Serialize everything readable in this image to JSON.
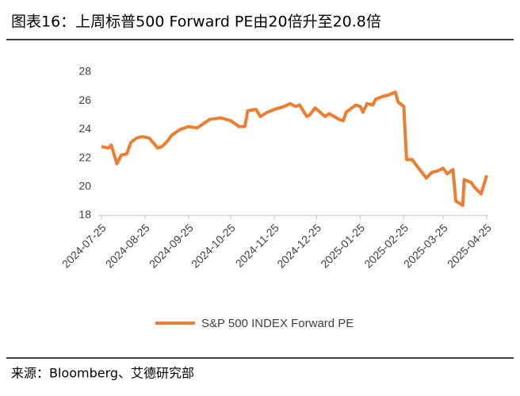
{
  "chart_data": {
    "type": "line",
    "title": "图表16：上周标普500 Forward PE由20倍升至20.8倍",
    "source": "来源：Bloomberg、艾德研究部",
    "x": [
      "2024-07-25",
      "2024-07-30",
      "2024-08-01",
      "2024-08-05",
      "2024-08-08",
      "2024-08-12",
      "2024-08-15",
      "2024-08-19",
      "2024-08-23",
      "2024-08-28",
      "2024-09-03",
      "2024-09-06",
      "2024-09-10",
      "2024-09-13",
      "2024-09-19",
      "2024-09-25",
      "2024-10-01",
      "2024-10-04",
      "2024-10-10",
      "2024-10-18",
      "2024-10-25",
      "2024-10-31",
      "2024-11-04",
      "2024-11-06",
      "2024-11-12",
      "2024-11-15",
      "2024-11-20",
      "2024-11-25",
      "2024-12-02",
      "2024-12-06",
      "2024-12-10",
      "2024-12-13",
      "2024-12-18",
      "2024-12-20",
      "2024-12-24",
      "2024-12-31",
      "2025-01-03",
      "2025-01-10",
      "2025-01-13",
      "2025-01-15",
      "2025-01-22",
      "2025-01-25",
      "2025-01-27",
      "2025-01-30",
      "2025-02-03",
      "2025-02-05",
      "2025-02-10",
      "2025-02-14",
      "2025-02-19",
      "2025-02-21",
      "2025-02-25",
      "2025-02-27",
      "2025-03-03",
      "2025-03-06",
      "2025-03-10",
      "2025-03-13",
      "2025-03-17",
      "2025-03-21",
      "2025-03-25",
      "2025-03-28",
      "2025-04-01",
      "2025-04-03",
      "2025-04-08",
      "2025-04-09",
      "2025-04-14",
      "2025-04-16",
      "2025-04-21",
      "2025-04-25"
    ],
    "series": [
      {
        "name": "S&P 500 INDEX Forward PE",
        "color": "#ed7d31",
        "values": [
          22.8,
          22.7,
          22.9,
          21.6,
          22.2,
          22.3,
          23.1,
          23.4,
          23.5,
          23.4,
          22.7,
          22.8,
          23.2,
          23.6,
          24.0,
          24.2,
          24.1,
          24.3,
          24.7,
          24.8,
          24.6,
          24.2,
          24.2,
          25.3,
          25.4,
          24.9,
          25.2,
          25.4,
          25.6,
          25.8,
          25.6,
          25.7,
          24.9,
          25.0,
          25.5,
          24.9,
          25.1,
          24.7,
          24.6,
          25.2,
          25.7,
          25.6,
          25.2,
          25.8,
          25.7,
          26.1,
          26.3,
          26.4,
          26.6,
          25.9,
          25.6,
          21.9,
          21.9,
          21.5,
          21.0,
          20.6,
          21.0,
          21.1,
          21.3,
          20.9,
          21.2,
          19.0,
          18.7,
          20.5,
          20.3,
          20.0,
          19.5,
          20.8
        ]
      }
    ],
    "xlim": [
      "2024-07-25",
      "2025-04-25"
    ],
    "xticks": [
      "2024-07-25",
      "2024-08-25",
      "2024-09-25",
      "2024-10-25",
      "2024-11-25",
      "2024-12-25",
      "2025-01-25",
      "2025-02-25",
      "2025-03-25",
      "2025-04-25"
    ],
    "ylim": [
      18,
      28
    ],
    "yticks": [
      18,
      20,
      22,
      24,
      26,
      28
    ],
    "grid": false,
    "legend": "bottom"
  }
}
